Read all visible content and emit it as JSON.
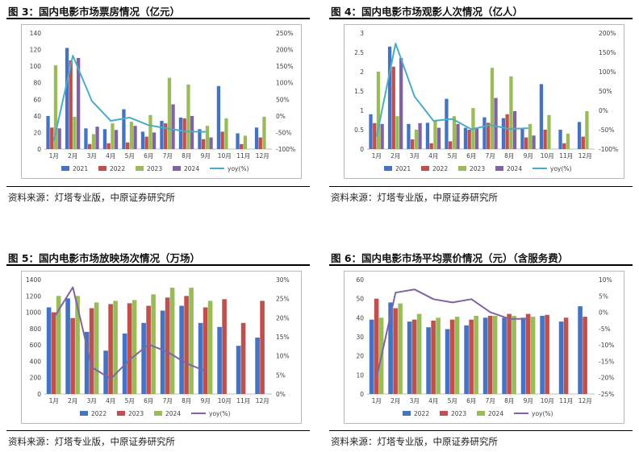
{
  "panels": [
    {
      "title": "图 3：国内电影市场票房情况（亿元）",
      "source": "资料来源：灯塔专业版，中原证券研究所",
      "chart_data": {
        "type": "bar",
        "categories": [
          "1月",
          "2月",
          "3月",
          "4月",
          "5月",
          "6月",
          "7月",
          "8月",
          "9月",
          "10月",
          "11月",
          "12月"
        ],
        "series": [
          {
            "name": "2021",
            "kind": "bar",
            "color": "#4472c4",
            "values": [
              40,
              122,
              25,
              24,
              48,
              21,
              34,
              38,
              24,
              76,
              19,
              26
            ]
          },
          {
            "name": "2022",
            "kind": "bar",
            "color": "#c0504d",
            "values": [
              26,
              107,
              6,
              7,
              8,
              15,
              31,
              37,
              12,
              21,
              6,
              14
            ]
          },
          {
            "name": "2023",
            "kind": "bar",
            "color": "#9bbb59",
            "values": [
              101,
              39,
              18,
              31,
              33,
              41,
              86,
              78,
              28,
              37,
              16,
              39
            ]
          },
          {
            "name": "2024",
            "kind": "bar",
            "color": "#8064a2",
            "values": [
              25,
              110,
              27,
              23,
              28,
              20,
              54,
              40,
              14,
              null,
              null,
              null
            ]
          },
          {
            "name": "yoy(%)",
            "kind": "line",
            "axis": "right",
            "color": "#4bacc6",
            "values": [
              -75,
              182,
              45,
              -15,
              -5,
              -28,
              -38,
              -47,
              -48,
              null,
              null,
              null
            ]
          }
        ],
        "yleft": {
          "min": 0,
          "max": 140,
          "ticks": [
            0,
            20,
            40,
            60,
            80,
            100,
            120,
            140
          ],
          "labels": [
            "0",
            "20",
            "40",
            "60",
            "80",
            "100",
            "120",
            "140"
          ]
        },
        "yright": {
          "min": -100,
          "max": 250,
          "ticks": [
            -100,
            -50,
            0,
            50,
            100,
            150,
            200,
            250
          ],
          "labels": [
            "-100%",
            "-50%",
            "0%",
            "50%",
            "100%",
            "150%",
            "200%",
            "250%"
          ]
        },
        "legend": "bottom"
      }
    },
    {
      "title": "图 4：国内电影市场观影人次情况（亿人）",
      "source": "资料来源：灯塔专业版，中原证券研究所",
      "chart_data": {
        "type": "bar",
        "categories": [
          "1月",
          "2月",
          "3月",
          "4月",
          "5月",
          "6月",
          "7月",
          "8月",
          "9月",
          "10月",
          "11月",
          "12月"
        ],
        "series": [
          {
            "name": "2021",
            "kind": "bar",
            "color": "#4472c4",
            "values": [
              0.9,
              2.65,
              0.65,
              0.68,
              1.3,
              0.55,
              0.82,
              0.8,
              0.55,
              1.68,
              0.5,
              0.7
            ]
          },
          {
            "name": "2022",
            "kind": "bar",
            "color": "#c0504d",
            "values": [
              0.67,
              2.13,
              0.25,
              0.15,
              0.2,
              0.5,
              0.68,
              0.9,
              0.3,
              0.5,
              0.15,
              0.32
            ]
          },
          {
            "name": "2023",
            "kind": "bar",
            "color": "#9bbb59",
            "values": [
              2.0,
              0.85,
              0.5,
              0.75,
              0.85,
              1.06,
              2.1,
              1.88,
              0.65,
              0.88,
              0.4,
              0.98
            ]
          },
          {
            "name": "2024",
            "kind": "bar",
            "color": "#8064a2",
            "values": [
              0.65,
              2.35,
              0.67,
              0.55,
              0.65,
              0.55,
              1.32,
              0.98,
              0.35,
              null,
              null,
              null
            ]
          },
          {
            "name": "yoy(%)",
            "kind": "line",
            "axis": "right",
            "color": "#4bacc6",
            "values": [
              -68,
              173,
              36,
              -27,
              -22,
              -49,
              -38,
              -48,
              -46,
              null,
              null,
              null
            ]
          }
        ],
        "yleft": {
          "min": 0,
          "max": 3,
          "ticks": [
            0,
            0.5,
            1,
            1.5,
            2,
            2.5,
            3
          ],
          "labels": [
            "0",
            "0.5",
            "1",
            "1.5",
            "2",
            "2.5",
            "3"
          ]
        },
        "yright": {
          "min": -100,
          "max": 200,
          "ticks": [
            -100,
            -50,
            0,
            50,
            100,
            150,
            200
          ],
          "labels": [
            "-100%",
            "-50%",
            "0%",
            "50%",
            "100%",
            "150%",
            "200%"
          ]
        },
        "legend": "bottom"
      }
    },
    {
      "title": "图 5：国内电影市场放映场次情况（万场）",
      "source": "资料来源：灯塔专业版，中原证券研究所",
      "chart_data": {
        "type": "bar",
        "categories": [
          "1月",
          "2月",
          "3月",
          "4月",
          "5月",
          "6月",
          "7月",
          "8月",
          "9月",
          "10月",
          "11月",
          "12月"
        ],
        "series": [
          {
            "name": "2022",
            "kind": "bar",
            "color": "#4472c4",
            "values": [
              1060,
              1170,
              760,
              530,
              740,
              870,
              1020,
              1080,
              870,
              820,
              590,
              690
            ]
          },
          {
            "name": "2023",
            "kind": "bar",
            "color": "#c0504d",
            "values": [
              1000,
              930,
              1050,
              1100,
              1110,
              1080,
              1180,
              1200,
              1060,
              1160,
              870,
              1140
            ]
          },
          {
            "name": "2024",
            "kind": "bar",
            "color": "#9bbb59",
            "values": [
              1200,
              1200,
              1120,
              1140,
              1150,
              1220,
              1300,
              1300,
              1140,
              null,
              null,
              null
            ]
          },
          {
            "name": "yoy(%)",
            "kind": "line",
            "axis": "right",
            "color": "#8064a2",
            "values": [
              20,
              28,
              7,
              4,
              9,
              13,
              11,
              8,
              6,
              null,
              null,
              null
            ]
          }
        ],
        "yleft": {
          "min": 0,
          "max": 1400,
          "ticks": [
            0,
            200,
            400,
            600,
            800,
            1000,
            1200,
            1400
          ],
          "labels": [
            "0",
            "200",
            "400",
            "600",
            "800",
            "1000",
            "1200",
            "1400"
          ]
        },
        "yright": {
          "min": 0,
          "max": 30,
          "ticks": [
            0,
            5,
            10,
            15,
            20,
            25,
            30
          ],
          "labels": [
            "0%",
            "5%",
            "10%",
            "15%",
            "20%",
            "25%",
            "30%"
          ]
        },
        "legend": "bottom"
      }
    },
    {
      "title": "图 6：国内电影市场平均票价情况（元）（含服务费）",
      "source": "资料来源：灯塔专业版，中原证券研究所",
      "chart_data": {
        "type": "bar",
        "categories": [
          "1月",
          "2月",
          "3月",
          "4月",
          "5月",
          "6月",
          "7月",
          "8月",
          "9月",
          "10月",
          "11月",
          "12月"
        ],
        "series": [
          {
            "name": "2022",
            "kind": "bar",
            "color": "#4472c4",
            "values": [
              39,
              48,
              38,
              35,
              34,
              36,
              40,
              40,
              40,
              41,
              38,
              46
            ]
          },
          {
            "name": "2023",
            "kind": "bar",
            "color": "#c0504d",
            "values": [
              50,
              45,
              39,
              38.5,
              39,
              39,
              41,
              42,
              42,
              41.5,
              40,
              40.5
            ]
          },
          {
            "name": "2024",
            "kind": "bar",
            "color": "#9bbb59",
            "values": [
              40,
              47.5,
              42,
              40,
              40.5,
              41,
              41,
              41,
              40.5,
              null,
              null,
              null
            ]
          },
          {
            "name": "yoy(%)",
            "kind": "line",
            "axis": "right",
            "color": "#8064a2",
            "values": [
              -20,
              6,
              7,
              4,
              3,
              4,
              0,
              -2,
              -2,
              null,
              null,
              null
            ]
          }
        ],
        "yleft": {
          "min": 0,
          "max": 60,
          "ticks": [
            0,
            10,
            20,
            30,
            40,
            50,
            60
          ],
          "labels": [
            "0",
            "10",
            "20",
            "30",
            "40",
            "50",
            "60"
          ]
        },
        "yright": {
          "min": -25,
          "max": 10,
          "ticks": [
            -25,
            -20,
            -15,
            -10,
            -5,
            0,
            5,
            10
          ],
          "labels": [
            "-25%",
            "-20%",
            "-15%",
            "-10%",
            "-5%",
            "0%",
            "5%",
            "10%"
          ]
        },
        "legend": "bottom"
      }
    }
  ]
}
